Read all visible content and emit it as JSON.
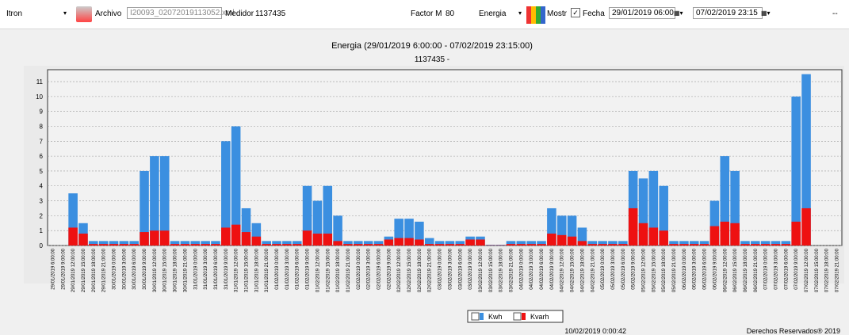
{
  "toolbar": {
    "device": "Itron",
    "file_label": "Archivo",
    "file": "I20093_02072019113052.xml",
    "meter_label": "Medidor",
    "meter": "1137435",
    "factor_label": "Factor M",
    "factor": "80",
    "mode": "Energia",
    "show": "Mostr",
    "date_label": "Fecha",
    "from": "29/01/2019 06:00",
    "to": "07/02/2019 23:15",
    "extra": "--"
  },
  "chart_data": {
    "type": "bar",
    "title": "Energia (29/01/2019 6:00:00  - 07/02/2019 23:15:00)",
    "subtitle": "1137435 -",
    "categories": [
      "29/01/2019 6:00:00",
      "29/01/2019 9:00:00",
      "29/01/2019 12:00:00",
      "29/01/2019 15:00:00",
      "29/01/2019 18:00:00",
      "29/01/2019 21:00:00",
      "30/01/2019 0:00:00",
      "30/01/2019 3:00:00",
      "30/01/2019 6:00:00",
      "30/01/2019 9:00:00",
      "30/01/2019 12:00:00",
      "30/01/2019 15:00:00",
      "30/01/2019 18:00:00",
      "30/01/2019 21:00:00",
      "31/01/2019 0:00:00",
      "31/01/2019 3:00:00",
      "31/01/2019 6:00:00",
      "31/01/2019 9:00:00",
      "31/01/2019 12:00:00",
      "31/01/2019 15:00:00",
      "31/01/2019 18:00:00",
      "31/01/2019 21:00:00",
      "01/02/2019 0:00:00",
      "01/02/2019 3:00:00",
      "01/02/2019 6:00:00",
      "01/02/2019 9:00:00",
      "01/02/2019 12:00:00",
      "01/02/2019 15:00:00",
      "01/02/2019 18:00:00",
      "01/02/2019 21:00:00",
      "02/02/2019 0:00:00",
      "02/02/2019 3:00:00",
      "02/02/2019 6:00:00",
      "02/02/2019 9:00:00",
      "02/02/2019 12:00:00",
      "02/02/2019 15:00:00",
      "02/02/2019 18:00:00",
      "02/02/2019 21:00:00",
      "03/02/2019 0:00:00",
      "03/02/2019 3:00:00",
      "03/02/2019 6:00:00",
      "03/02/2019 9:00:00",
      "03/02/2019 12:00:00",
      "03/02/2019 15:00:00",
      "03/02/2019 18:00:00",
      "03/02/2019 21:00:00",
      "04/02/2019 0:00:00",
      "04/02/2019 3:00:00",
      "04/02/2019 6:00:00",
      "04/02/2019 9:00:00",
      "04/02/2019 12:00:00",
      "04/02/2019 15:00:00",
      "04/02/2019 18:00:00",
      "04/02/2019 21:00:00",
      "05/02/2019 0:00:00",
      "05/02/2019 3:00:00",
      "05/02/2019 6:00:00",
      "05/02/2019 9:00:00",
      "05/02/2019 12:00:00",
      "05/02/2019 15:00:00",
      "05/02/2019 18:00:00",
      "05/02/2019 21:00:00",
      "06/02/2019 0:00:00",
      "06/02/2019 3:00:00",
      "06/02/2019 6:00:00",
      "06/02/2019 9:00:00",
      "06/02/2019 12:00:00",
      "06/02/2019 15:00:00",
      "06/02/2019 18:00:00",
      "06/02/2019 21:00:00",
      "07/02/2019 0:00:00",
      "07/02/2019 3:00:00",
      "07/02/2019 6:00:00",
      "07/02/2019 9:00:00",
      "07/02/2019 12:00:00",
      "07/02/2019 15:00:00",
      "07/02/2019 18:00:00",
      "07/02/2019 21:00:00"
    ],
    "series": [
      {
        "name": "Kwh",
        "color": "#3b8fe0",
        "values": [
          0,
          0,
          3.5,
          1.5,
          0.3,
          0.3,
          0.3,
          0.3,
          0.3,
          5,
          6,
          6,
          0.3,
          0.3,
          0.3,
          0.3,
          0.3,
          7,
          8,
          2.5,
          1.5,
          0.3,
          0.3,
          0.3,
          0.3,
          4,
          3,
          4,
          2,
          0.3,
          0.3,
          0.3,
          0.3,
          0.6,
          1.8,
          1.8,
          1.6,
          0.5,
          0.3,
          0.3,
          0.3,
          0.6,
          0.6,
          0.05,
          0.05,
          0.3,
          0.3,
          0.3,
          0.3,
          2.5,
          2,
          2,
          1.2,
          0.3,
          0.3,
          0.3,
          0.3,
          5,
          4.5,
          5,
          4,
          0.3,
          0.3,
          0.3,
          0.3,
          3,
          6,
          5,
          0.3,
          0.3,
          0.3,
          0.3,
          0.3,
          10,
          11.5,
          0,
          0,
          0
        ]
      },
      {
        "name": "Kvarh",
        "color": "#ee1111",
        "values": [
          0,
          0,
          1.2,
          0.8,
          0.1,
          0.1,
          0.1,
          0.1,
          0.1,
          0.9,
          1,
          1,
          0.1,
          0.1,
          0.1,
          0.1,
          0.1,
          1.2,
          1.4,
          0.9,
          0.6,
          0.1,
          0.1,
          0.1,
          0.1,
          1,
          0.8,
          0.8,
          0.3,
          0.1,
          0.1,
          0.1,
          0.1,
          0.4,
          0.5,
          0.5,
          0.4,
          0.1,
          0.1,
          0.1,
          0.1,
          0.4,
          0.4,
          0.02,
          0.02,
          0.1,
          0.1,
          0.1,
          0.1,
          0.8,
          0.7,
          0.6,
          0.3,
          0.1,
          0.1,
          0.1,
          0.1,
          2.5,
          1.5,
          1.2,
          1,
          0.1,
          0.1,
          0.1,
          0.1,
          1.3,
          1.6,
          1.5,
          0.1,
          0.1,
          0.1,
          0.1,
          0.1,
          1.6,
          2.5,
          0,
          0,
          0
        ]
      }
    ],
    "ylim": [
      0,
      11.8
    ],
    "yticks": [
      0,
      1,
      2,
      3,
      4,
      5,
      6,
      7,
      8,
      9,
      10,
      11
    ],
    "grid": true
  },
  "footer": {
    "timestamp": "10/02/2019 0:00:42",
    "copyright": "Derechos Reservados® 2019"
  }
}
